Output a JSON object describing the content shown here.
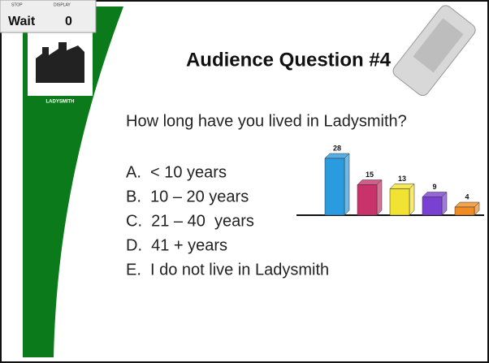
{
  "widget": {
    "stop_label": "STOP",
    "display_label": "DISPLAY",
    "status": "Wait",
    "count": "0"
  },
  "logo_caption": "LADYSMITH",
  "slide": {
    "title": "Audience Question #4",
    "question": "How long have you lived in Ladysmith?",
    "options": [
      "A.  < 10 years",
      "B.  10 – 20 years",
      "C.  21 – 40  years",
      "D.  41 + years",
      "E.  I do not live in Ladysmith"
    ]
  },
  "chart_data": {
    "type": "bar",
    "categories": [
      null,
      null,
      null,
      null,
      null
    ],
    "values": [
      28,
      15,
      13,
      9,
      4
    ],
    "colors": [
      "#2b9be0",
      "#c8336b",
      "#f2e232",
      "#7a40d2",
      "#f08b22"
    ]
  }
}
